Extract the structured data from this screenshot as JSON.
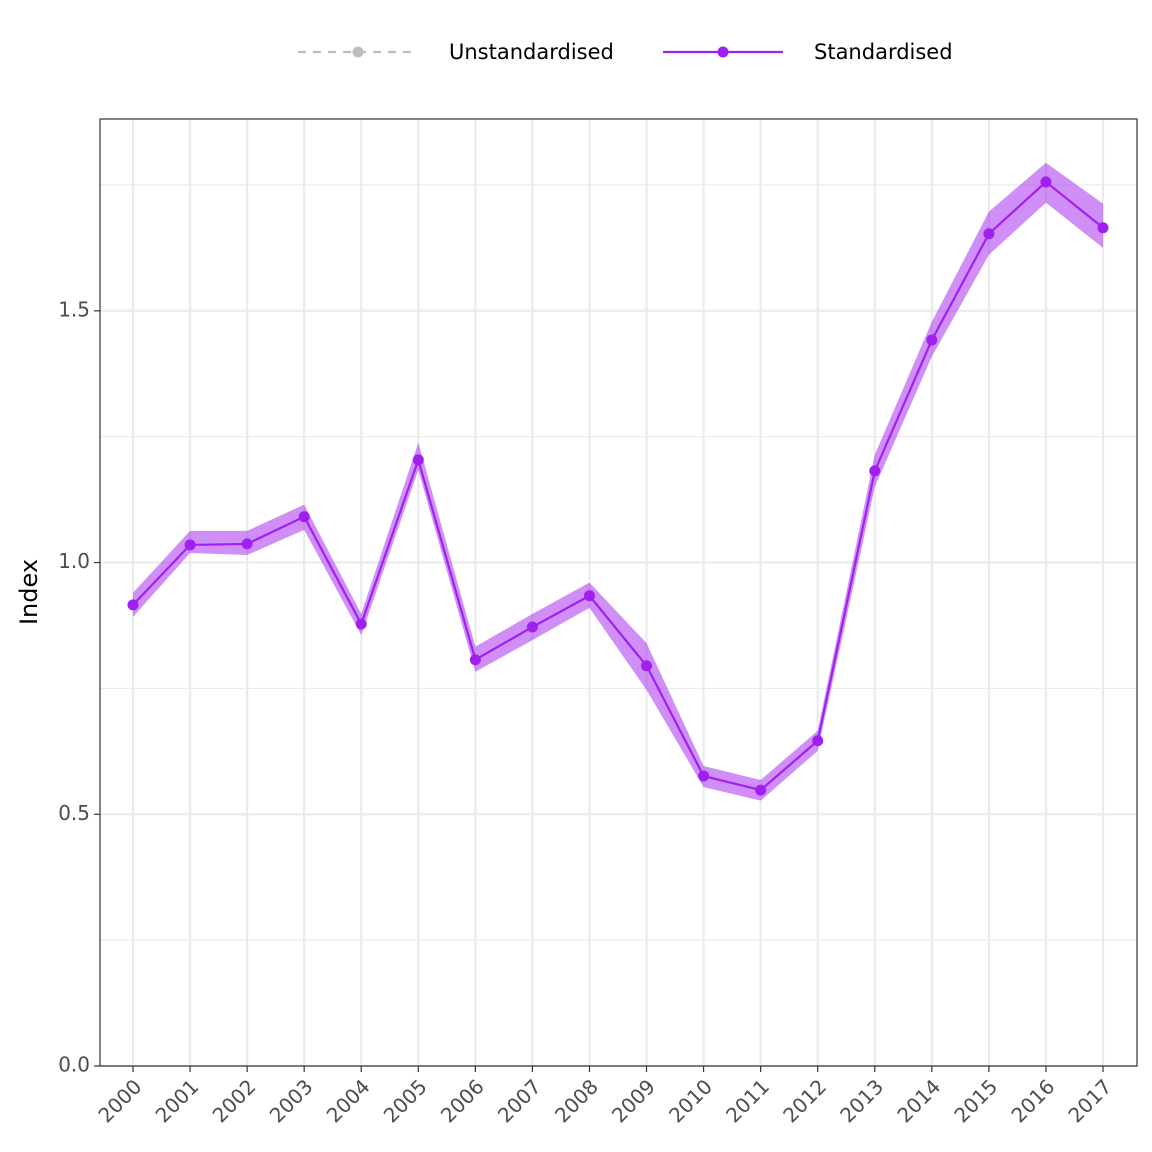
{
  "chart_data": {
    "type": "line",
    "y_label": "Index",
    "categories": [
      "2000",
      "2001",
      "2002",
      "2003",
      "2004",
      "2005",
      "2006",
      "2007",
      "2008",
      "2009",
      "2010",
      "2011",
      "2012",
      "2013",
      "2014",
      "2015",
      "2016",
      "2017"
    ],
    "series": [
      {
        "name": "Unstandardised",
        "color": "#bebebe",
        "dashed": true
      },
      {
        "name": "Standardised",
        "color": "#a020f0",
        "values": [
          0.916,
          1.035,
          1.037,
          1.091,
          0.878,
          1.204,
          0.807,
          0.872,
          0.934,
          0.795,
          0.576,
          0.548,
          0.646,
          1.182,
          1.442,
          1.653,
          1.756,
          1.665
        ],
        "lower": [
          0.892,
          1.019,
          1.015,
          1.065,
          0.856,
          1.184,
          0.783,
          0.846,
          0.91,
          0.747,
          0.554,
          0.527,
          0.626,
          1.15,
          1.409,
          1.611,
          1.715,
          1.625
        ],
        "upper": [
          0.94,
          1.063,
          1.063,
          1.115,
          0.898,
          1.238,
          0.833,
          0.898,
          0.96,
          0.84,
          0.596,
          0.568,
          0.666,
          1.214,
          1.478,
          1.697,
          1.794,
          1.713
        ]
      }
    ],
    "ylim": [
      0,
      1.881
    ],
    "yticks": [
      {
        "value": 0,
        "label": "0.0"
      },
      0.5,
      {
        "value": 1,
        "label": "1.0"
      },
      1.5
    ],
    "y_minor_ticks": [
      0.25,
      0.75,
      1.25,
      1.75
    ],
    "grid": true,
    "legend": "top"
  }
}
